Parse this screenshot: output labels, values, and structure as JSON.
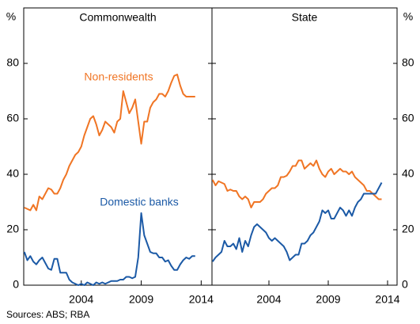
{
  "chart_data": [
    {
      "type": "line",
      "title": "Commonwealth",
      "y_unit": "%",
      "x": [
        1999.25,
        1999.5,
        1999.75,
        2000,
        2000.25,
        2000.5,
        2000.75,
        2001,
        2001.25,
        2001.5,
        2001.75,
        2002,
        2002.25,
        2002.5,
        2002.75,
        2003,
        2003.25,
        2003.5,
        2003.75,
        2004,
        2004.25,
        2004.5,
        2004.75,
        2005,
        2005.25,
        2005.5,
        2005.75,
        2006,
        2006.25,
        2006.5,
        2006.75,
        2007,
        2007.25,
        2007.5,
        2007.75,
        2008,
        2008.25,
        2008.5,
        2008.75,
        2009,
        2009.25,
        2009.5,
        2009.75,
        2010,
        2010.25,
        2010.5,
        2010.75,
        2011,
        2011.25,
        2011.5,
        2011.75,
        2012,
        2012.25,
        2012.5,
        2012.75,
        2013,
        2013.25,
        2013.5
      ],
      "series": [
        {
          "name": "Non-residents",
          "color": "#f07524",
          "values": [
            28,
            27.5,
            27,
            29,
            27,
            32,
            31,
            33,
            35,
            34.5,
            33,
            33,
            35,
            38,
            40,
            43,
            45,
            47,
            48,
            50,
            54,
            57,
            60,
            61,
            58,
            54,
            56,
            59,
            58,
            57,
            55,
            59,
            60,
            70,
            66,
            62,
            64,
            67,
            59,
            51,
            59,
            59,
            64,
            66,
            67,
            69,
            69,
            68,
            70,
            73,
            75.5,
            76,
            72,
            69,
            68,
            68,
            68,
            68
          ]
        },
        {
          "name": "Domestic banks",
          "color": "#1c5aa6",
          "values": [
            12,
            9,
            10.5,
            8.5,
            7.5,
            9,
            10,
            8,
            6,
            5.5,
            9.5,
            9.5,
            4.5,
            4.5,
            4.5,
            2,
            1,
            0.5,
            0,
            0.5,
            0,
            1,
            0.5,
            0,
            1,
            0.5,
            1,
            0.5,
            1,
            1.5,
            1.5,
            1.5,
            2,
            2,
            3,
            3,
            2.5,
            3,
            10,
            26,
            18,
            15,
            12,
            11.5,
            11.5,
            10,
            10,
            8.5,
            9,
            7,
            5.5,
            5.5,
            7.5,
            9,
            10,
            9.5,
            10.5,
            10.5
          ]
        }
      ],
      "xlim": [
        1999.2,
        2014.9
      ],
      "xticks": [
        2004,
        2009,
        2014
      ],
      "ylim": [
        0,
        100
      ],
      "yticks": [
        0,
        20,
        40,
        60,
        80
      ]
    },
    {
      "type": "line",
      "title": "State",
      "y_unit": "%",
      "x": [
        1999.25,
        1999.5,
        1999.75,
        2000,
        2000.25,
        2000.5,
        2000.75,
        2001,
        2001.25,
        2001.5,
        2001.75,
        2002,
        2002.25,
        2002.5,
        2002.75,
        2003,
        2003.25,
        2003.5,
        2003.75,
        2004,
        2004.25,
        2004.5,
        2004.75,
        2005,
        2005.25,
        2005.5,
        2005.75,
        2006,
        2006.25,
        2006.5,
        2006.75,
        2007,
        2007.25,
        2007.5,
        2007.75,
        2008,
        2008.25,
        2008.5,
        2008.75,
        2009,
        2009.25,
        2009.5,
        2009.75,
        2010,
        2010.25,
        2010.5,
        2010.75,
        2011,
        2011.25,
        2011.5,
        2011.75,
        2012,
        2012.25,
        2012.5,
        2012.75,
        2013,
        2013.25,
        2013.5
      ],
      "series": [
        {
          "color": "#f07524",
          "values": [
            38,
            36,
            37.5,
            37,
            36.5,
            34,
            34.5,
            34,
            34,
            32,
            31,
            32,
            31,
            28,
            30,
            30,
            30,
            31,
            33,
            34,
            35,
            35,
            36,
            39,
            39,
            39.5,
            41,
            43,
            43,
            45,
            45,
            42,
            43,
            44,
            43,
            45,
            42,
            40,
            39,
            41,
            42,
            40,
            41,
            42,
            41,
            41,
            40,
            41,
            39,
            38,
            37,
            36,
            34,
            34,
            33,
            32,
            31,
            31
          ]
        },
        {
          "color": "#1c5aa6",
          "values": [
            8.5,
            10,
            11,
            12,
            16,
            14,
            14,
            15,
            13,
            17,
            12,
            16,
            14,
            18,
            21,
            22,
            21,
            20,
            19,
            17,
            16,
            17,
            16,
            15,
            14,
            12,
            9,
            10,
            11,
            11,
            15,
            15,
            16,
            18,
            19,
            21,
            23,
            27,
            26,
            27,
            24,
            24,
            26,
            28,
            27,
            25,
            27,
            25,
            28,
            30,
            31,
            33,
            33,
            33,
            33,
            33,
            35,
            37
          ]
        }
      ],
      "xlim": [
        1999.2,
        2014.8
      ],
      "xticks": [
        2004,
        2009,
        2014
      ],
      "ylim": [
        0,
        100
      ],
      "yticks": [
        0,
        20,
        40,
        60,
        80
      ]
    }
  ],
  "source": "Sources: ABS; RBA"
}
